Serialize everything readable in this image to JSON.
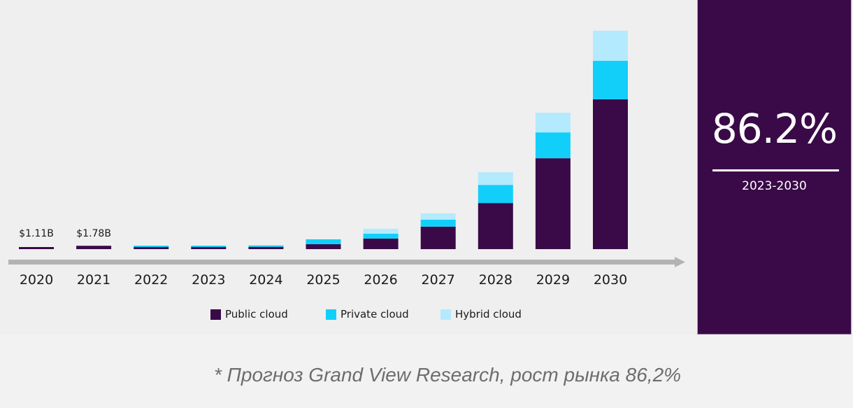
{
  "chart_data": {
    "type": "bar",
    "stacked": true,
    "title": "",
    "xlabel": "",
    "ylabel": "",
    "categories": [
      "2020",
      "2021",
      "2022",
      "2023",
      "2024",
      "2025",
      "2026",
      "2027",
      "2028",
      "2029",
      "2030"
    ],
    "series": [
      {
        "name": "Public cloud",
        "color": "#3a0a48",
        "values": [
          1.11,
          1.78,
          1.1,
          1.1,
          1.2,
          2.6,
          5.6,
          11.9,
          24.4,
          48.1,
          79.3
        ]
      },
      {
        "name": "Private cloud",
        "color": "#12cffa",
        "values": [
          0,
          0,
          0.6,
          0.6,
          0.6,
          2.6,
          2.6,
          3.7,
          9.6,
          13.7,
          20.4
        ]
      },
      {
        "name": "Hybrid cloud",
        "color": "#b3eafd",
        "values": [
          0,
          0,
          0,
          0,
          0,
          0,
          2.6,
          3.3,
          6.7,
          10.4,
          15.9
        ]
      }
    ],
    "data_labels": [
      {
        "category": "2020",
        "text": "$1.11B"
      },
      {
        "category": "2021",
        "text": "$1.78B"
      }
    ],
    "ylim": [
      0,
      120
    ],
    "grid": false,
    "legend_position": "bottom"
  },
  "stat": {
    "value": "86.2%",
    "period": "2023-2030"
  },
  "footnote": "* Прогноз Grand View Research, рост рынка 86,2%",
  "colors": {
    "panel": "#3a0a48",
    "axis": "#b3b3b3"
  }
}
